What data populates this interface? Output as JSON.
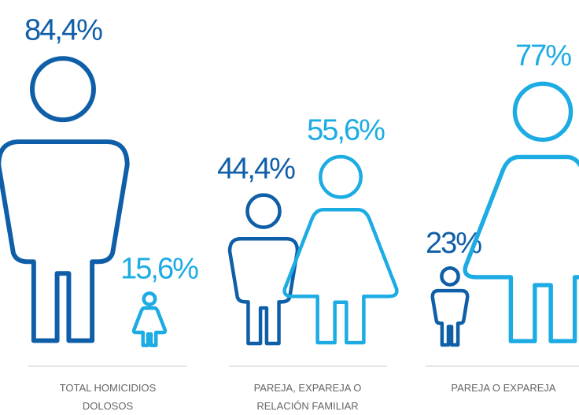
{
  "chart_data": {
    "type": "pictogram",
    "categories": [
      "TOTAL HOMICIDIOS DOLOSOS",
      "PAREJA, EXPAREJA O RELACIÓN FAMILIAR",
      "PAREJA O EXPAREJA"
    ],
    "series": [
      {
        "color": "#0f5ea8",
        "values": [
          84.4,
          44.4,
          23
        ],
        "value_labels": [
          "84,4%",
          "44,4%",
          "23%"
        ]
      },
      {
        "color": "#1cace3",
        "values": [
          15.6,
          55.6,
          77
        ],
        "value_labels": [
          "15,6%",
          "55,6%",
          "77%"
        ]
      }
    ]
  }
}
